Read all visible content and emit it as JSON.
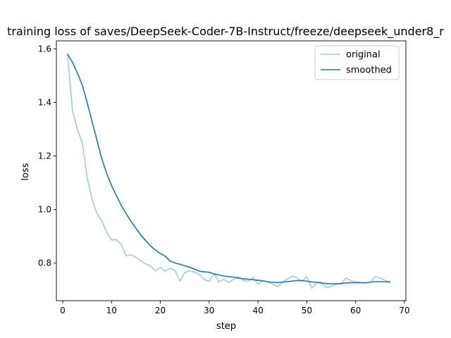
{
  "chart_data": {
    "type": "line",
    "title": "training loss of saves/DeepSeek-Coder-7B-Instruct/freeze/deepseek_under8_r",
    "xlabel": "step",
    "ylabel": "loss",
    "xlim": [
      -1.3,
      70.3
    ],
    "ylim": [
      0.66,
      1.63
    ],
    "xticks": [
      0,
      10,
      20,
      30,
      40,
      50,
      60,
      70
    ],
    "yticks": [
      0.8,
      1.0,
      1.2,
      1.4,
      1.6
    ],
    "ytick_labels": [
      "0.8",
      "1.0",
      "1.2",
      "1.4",
      "1.6"
    ],
    "legend": {
      "position": "upper right"
    },
    "colors": {
      "original": "#a6c8e3",
      "smoothed": "#1f77b4"
    },
    "series": [
      {
        "name": "original",
        "x": [
          1,
          2,
          3,
          4,
          5,
          6,
          7,
          8,
          9,
          10,
          11,
          12,
          13,
          14,
          15,
          16,
          17,
          18,
          19,
          20,
          21,
          22,
          23,
          24,
          25,
          26,
          27,
          28,
          29,
          30,
          31,
          32,
          33,
          34,
          35,
          36,
          37,
          38,
          39,
          40,
          41,
          42,
          43,
          44,
          45,
          46,
          47,
          48,
          49,
          50,
          51,
          52,
          53,
          54,
          55,
          56,
          57,
          58,
          59,
          60,
          61,
          62,
          63,
          64,
          65,
          66,
          67
        ],
        "values": [
          1.58,
          1.37,
          1.3,
          1.25,
          1.12,
          1.04,
          0.985,
          0.96,
          0.915,
          0.887,
          0.888,
          0.869,
          0.827,
          0.831,
          0.822,
          0.809,
          0.797,
          0.79,
          0.771,
          0.784,
          0.769,
          0.781,
          0.773,
          0.733,
          0.765,
          0.771,
          0.766,
          0.758,
          0.74,
          0.732,
          0.76,
          0.73,
          0.74,
          0.728,
          0.74,
          0.75,
          0.736,
          0.732,
          0.747,
          0.722,
          0.735,
          0.729,
          0.722,
          0.712,
          0.73,
          0.74,
          0.752,
          0.745,
          0.732,
          0.75,
          0.706,
          0.726,
          0.73,
          0.709,
          0.712,
          0.722,
          0.723,
          0.745,
          0.734,
          0.731,
          0.728,
          0.725,
          0.728,
          0.75,
          0.745,
          0.736,
          0.726
        ]
      },
      {
        "name": "smoothed",
        "x": [
          1,
          2,
          3,
          4,
          5,
          6,
          7,
          8,
          9,
          10,
          11,
          12,
          13,
          14,
          15,
          16,
          17,
          18,
          19,
          20,
          21,
          22,
          23,
          24,
          25,
          26,
          27,
          28,
          29,
          30,
          31,
          32,
          33,
          34,
          35,
          36,
          37,
          38,
          39,
          40,
          41,
          42,
          43,
          44,
          45,
          46,
          47,
          48,
          49,
          50,
          51,
          52,
          53,
          54,
          55,
          56,
          57,
          58,
          59,
          60,
          61,
          62,
          63,
          64,
          65,
          66,
          67
        ],
        "values": [
          1.58,
          1.55,
          1.51,
          1.465,
          1.4,
          1.33,
          1.26,
          1.19,
          1.135,
          1.09,
          1.052,
          1.015,
          0.985,
          0.956,
          0.93,
          0.905,
          0.884,
          0.864,
          0.849,
          0.836,
          0.826,
          0.808,
          0.801,
          0.796,
          0.79,
          0.785,
          0.778,
          0.77,
          0.768,
          0.766,
          0.76,
          0.756,
          0.752,
          0.75,
          0.748,
          0.744,
          0.742,
          0.74,
          0.738,
          0.736,
          0.734,
          0.731,
          0.729,
          0.728,
          0.729,
          0.731,
          0.733,
          0.735,
          0.735,
          0.733,
          0.73,
          0.729,
          0.726,
          0.724,
          0.723,
          0.723,
          0.724,
          0.726,
          0.727,
          0.727,
          0.727,
          0.727,
          0.729,
          0.731,
          0.731,
          0.731,
          0.731
        ]
      }
    ]
  }
}
